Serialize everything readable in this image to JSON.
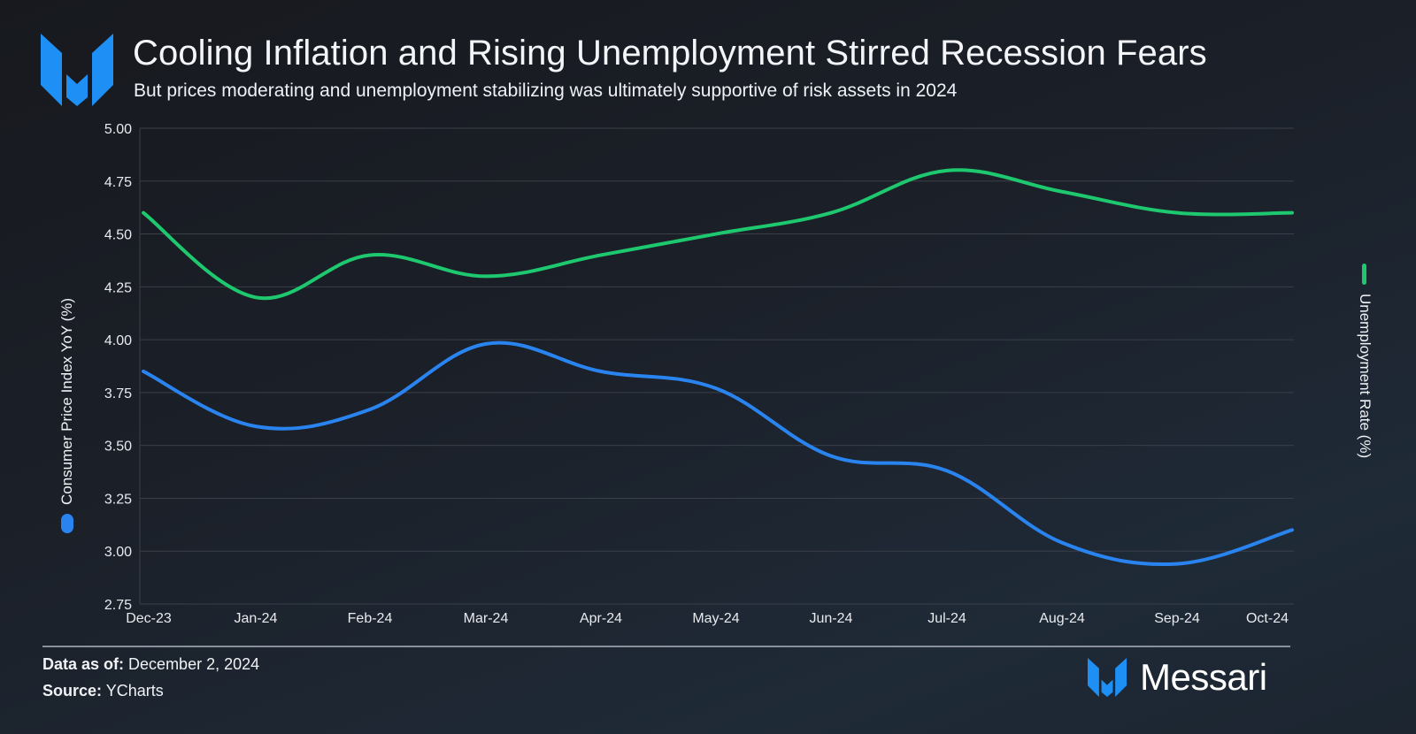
{
  "header": {
    "title": "Cooling Inflation and Rising Unemployment Stirred Recession Fears",
    "subtitle": "But prices moderating and unemployment stabilizing was ultimately supportive of risk assets in 2024",
    "logo_icon": "messari-m-logo-icon"
  },
  "colors": {
    "cpi": "#2a84f0",
    "unemployment": "#1ec86e",
    "logo": "#1e8ff5",
    "gridline": "#3a3f48",
    "text": "#f0f2f5"
  },
  "chart_data": {
    "type": "line",
    "title": "Cooling Inflation and Rising Unemployment Stirred Recession Fears",
    "subtitle": "But prices moderating and unemployment stabilizing was ultimately supportive of risk assets in 2024",
    "categories": [
      "Dec-23",
      "Jan-24",
      "Feb-24",
      "Mar-24",
      "Apr-24",
      "May-24",
      "Jun-24",
      "Jul-24",
      "Aug-24",
      "Sep-24",
      "Oct-24"
    ],
    "ylabel_left": "Consumer Price Index YoY (%)",
    "ylabel_right": "Unemployment Rate (%)",
    "xlabel": "",
    "ylim": [
      2.75,
      5.0
    ],
    "yticks": [
      "5.00",
      "4.75",
      "4.50",
      "4.25",
      "4.00",
      "3.75",
      "3.50",
      "3.25",
      "3.00",
      "2.75"
    ],
    "grid": true,
    "series": [
      {
        "name": "Consumer Price Index YoY (%)",
        "axis": "left",
        "color": "#2a84f0",
        "values": [
          3.85,
          3.59,
          3.67,
          3.98,
          3.85,
          3.77,
          3.45,
          3.38,
          3.04,
          2.94,
          3.1
        ]
      },
      {
        "name": "Unemployment Rate (%)",
        "axis": "right",
        "color": "#1ec86e",
        "values": [
          4.6,
          4.2,
          4.4,
          4.3,
          4.4,
          4.5,
          4.6,
          4.8,
          4.7,
          4.6,
          4.6
        ]
      }
    ],
    "legend": [
      "left-axis-label",
      "right-axis-label"
    ]
  },
  "footer": {
    "data_as_of_label": "Data as of:",
    "data_as_of_value": "December 2, 2024",
    "source_label": "Source:",
    "source_value": "YCharts",
    "brand_name": "Messari"
  }
}
